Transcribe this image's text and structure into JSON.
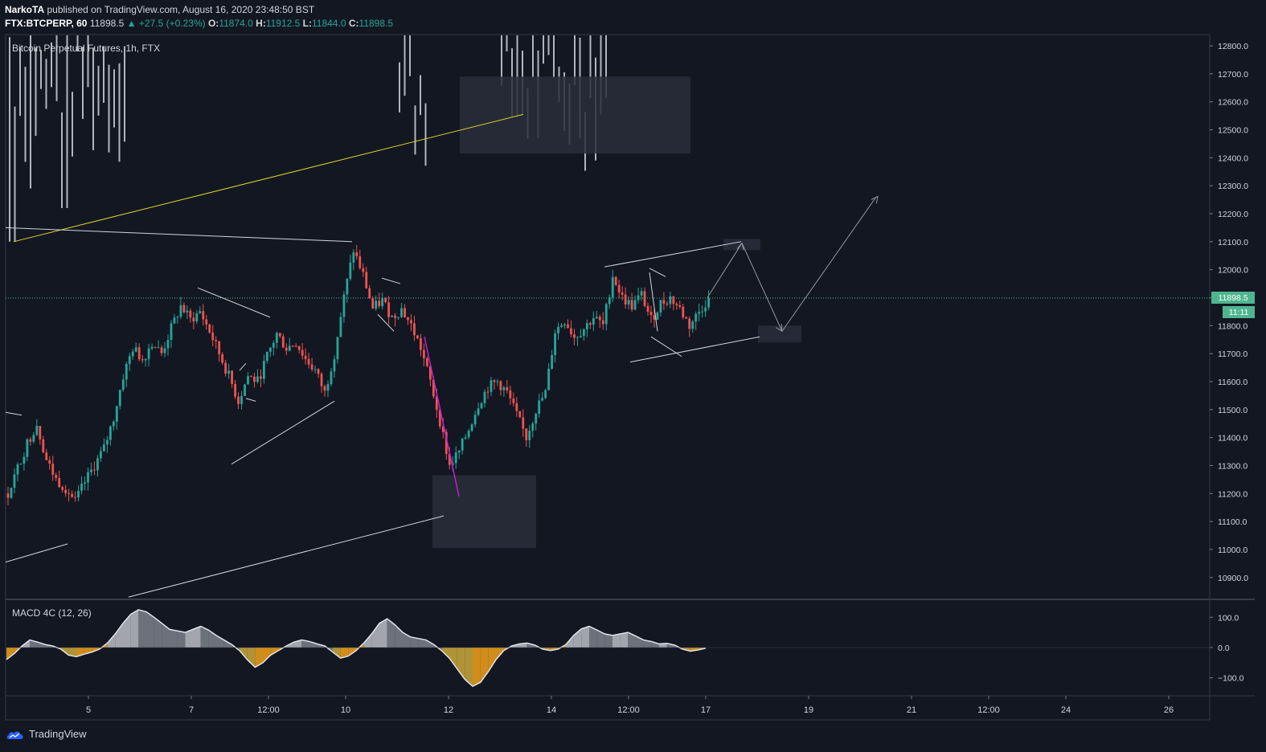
{
  "header": {
    "author": "NarkoTA",
    "published_text": "published on TradingView.com, August 16, 2020 23:48:50 BST",
    "symbol": "FTX:BTCPERP, 60",
    "last": "11898.5",
    "change": "+27.5 (+0.23%)",
    "o_label": "O:",
    "o_value": "11874.0",
    "h_label": "H:",
    "h_value": "11912.5",
    "l_label": "L:",
    "l_value": "11844.0",
    "c_label": "C:",
    "c_value": "11898.5"
  },
  "footer": {
    "brand": "TradingView"
  },
  "colors": {
    "bg": "#131722",
    "up": "#26a69a",
    "down": "#ef5350",
    "wick": "#9598a1",
    "yellow": "#d7d42a",
    "magenta": "#c71ed3",
    "zone": "#2a2e39",
    "price": "#4fb58f"
  },
  "chart_data": [
    {
      "type": "candlestick",
      "title": "Bitcoin Perpetual Futures, 1h, FTX",
      "ylim": [
        10830,
        12850
      ],
      "yticks": [
        10900,
        11000,
        11100,
        11200,
        11300,
        11400,
        11500,
        11600,
        11700,
        11800,
        11900,
        12000,
        12100,
        12200,
        12300,
        12400,
        12500,
        12600,
        12700,
        12800
      ],
      "ytick_labels": [
        "10900.0",
        "11000.0",
        "11100.0",
        "11200.0",
        "11300.0",
        "11400.0",
        "11500.0",
        "11600.0",
        "11700.0",
        "11800.0",
        "11900.0",
        "12000.0",
        "12100.0",
        "12200.0",
        "12300.0",
        "12400.0",
        "12500.0",
        "12600.0",
        "12700.0",
        "12800.0"
      ],
      "x_ticks": [
        "5",
        "7",
        "12:00",
        "10",
        "12",
        "14",
        "12:00",
        "17",
        "19",
        "21",
        "12:00",
        "24",
        "26"
      ],
      "last_price": "11898.5",
      "countdown": "11:11",
      "anchor_prices": [
        [
          0,
          11200
        ],
        [
          3,
          11290
        ],
        [
          6,
          11380
        ],
        [
          9,
          11450
        ],
        [
          12,
          11320
        ],
        [
          15,
          11250
        ],
        [
          18,
          11220
        ],
        [
          21,
          11170
        ],
        [
          24,
          11240
        ],
        [
          27,
          11300
        ],
        [
          30,
          11360
        ],
        [
          33,
          11470
        ],
        [
          36,
          11620
        ],
        [
          39,
          11720
        ],
        [
          42,
          11680
        ],
        [
          45,
          11740
        ],
        [
          48,
          11700
        ],
        [
          51,
          11790
        ],
        [
          54,
          11870
        ],
        [
          57,
          11820
        ],
        [
          60,
          11850
        ],
        [
          63,
          11780
        ],
        [
          66,
          11700
        ],
        [
          69,
          11620
        ],
        [
          72,
          11530
        ],
        [
          75,
          11620
        ],
        [
          78,
          11600
        ],
        [
          81,
          11690
        ],
        [
          84,
          11770
        ],
        [
          87,
          11720
        ],
        [
          90,
          11740
        ],
        [
          93,
          11680
        ],
        [
          96,
          11640
        ],
        [
          99,
          11560
        ],
        [
          102,
          11700
        ],
        [
          105,
          11900
        ],
        [
          108,
          12070
        ],
        [
          111,
          11980
        ],
        [
          114,
          11860
        ],
        [
          117,
          11890
        ],
        [
          120,
          11830
        ],
        [
          123,
          11860
        ],
        [
          126,
          11800
        ],
        [
          129,
          11720
        ],
        [
          132,
          11600
        ],
        [
          135,
          11460
        ],
        [
          138,
          11300
        ],
        [
          141,
          11350
        ],
        [
          144,
          11430
        ],
        [
          147,
          11520
        ],
        [
          150,
          11580
        ],
        [
          153,
          11600
        ],
        [
          156,
          11560
        ],
        [
          159,
          11480
        ],
        [
          162,
          11400
        ],
        [
          165,
          11500
        ],
        [
          168,
          11560
        ],
        [
          171,
          11780
        ],
        [
          174,
          11820
        ],
        [
          177,
          11760
        ],
        [
          180,
          11790
        ],
        [
          183,
          11830
        ],
        [
          186,
          11800
        ],
        [
          189,
          11980
        ],
        [
          192,
          11900
        ],
        [
          195,
          11870
        ],
        [
          198,
          11910
        ],
        [
          201,
          11820
        ],
        [
          204,
          11880
        ],
        [
          207,
          11900
        ],
        [
          210,
          11860
        ],
        [
          213,
          11800
        ],
        [
          216,
          11850
        ],
        [
          219,
          11898.5
        ]
      ],
      "candle_count": 220,
      "upper_bars_note": "prior price history above 12400 shown as grey wicks",
      "annotations": {
        "zones": [
          [
            12690,
            12415
          ],
          [
            11265,
            11005
          ],
          [
            12110,
            12070
          ],
          [
            11800,
            11740
          ]
        ],
        "projection": [
          [
            11898.5
          ],
          [
            12100
          ],
          [
            11780
          ],
          [
            12260
          ]
        ]
      }
    },
    {
      "type": "area",
      "title": "MACD 4C (12, 26)",
      "ylim": [
        -150,
        140
      ],
      "yticks": [
        100,
        0,
        -100
      ],
      "ytick_labels": [
        "100.0",
        "0.0",
        "−100.0"
      ],
      "values": [
        -40,
        -20,
        5,
        25,
        18,
        10,
        5,
        -5,
        -25,
        -30,
        -22,
        -15,
        -5,
        15,
        45,
        80,
        110,
        125,
        118,
        100,
        80,
        60,
        55,
        50,
        60,
        70,
        58,
        40,
        25,
        10,
        -10,
        -40,
        -65,
        -50,
        -25,
        -10,
        5,
        18,
        25,
        20,
        12,
        5,
        -15,
        -35,
        -28,
        -10,
        15,
        45,
        80,
        95,
        75,
        50,
        35,
        30,
        25,
        10,
        -10,
        -35,
        -70,
        -105,
        -128,
        -115,
        -80,
        -40,
        -10,
        5,
        12,
        15,
        8,
        -5,
        -10,
        -5,
        10,
        40,
        62,
        70,
        58,
        45,
        40,
        45,
        50,
        38,
        25,
        20,
        12,
        14,
        8,
        -5,
        -12,
        -8,
        -2
      ]
    }
  ]
}
